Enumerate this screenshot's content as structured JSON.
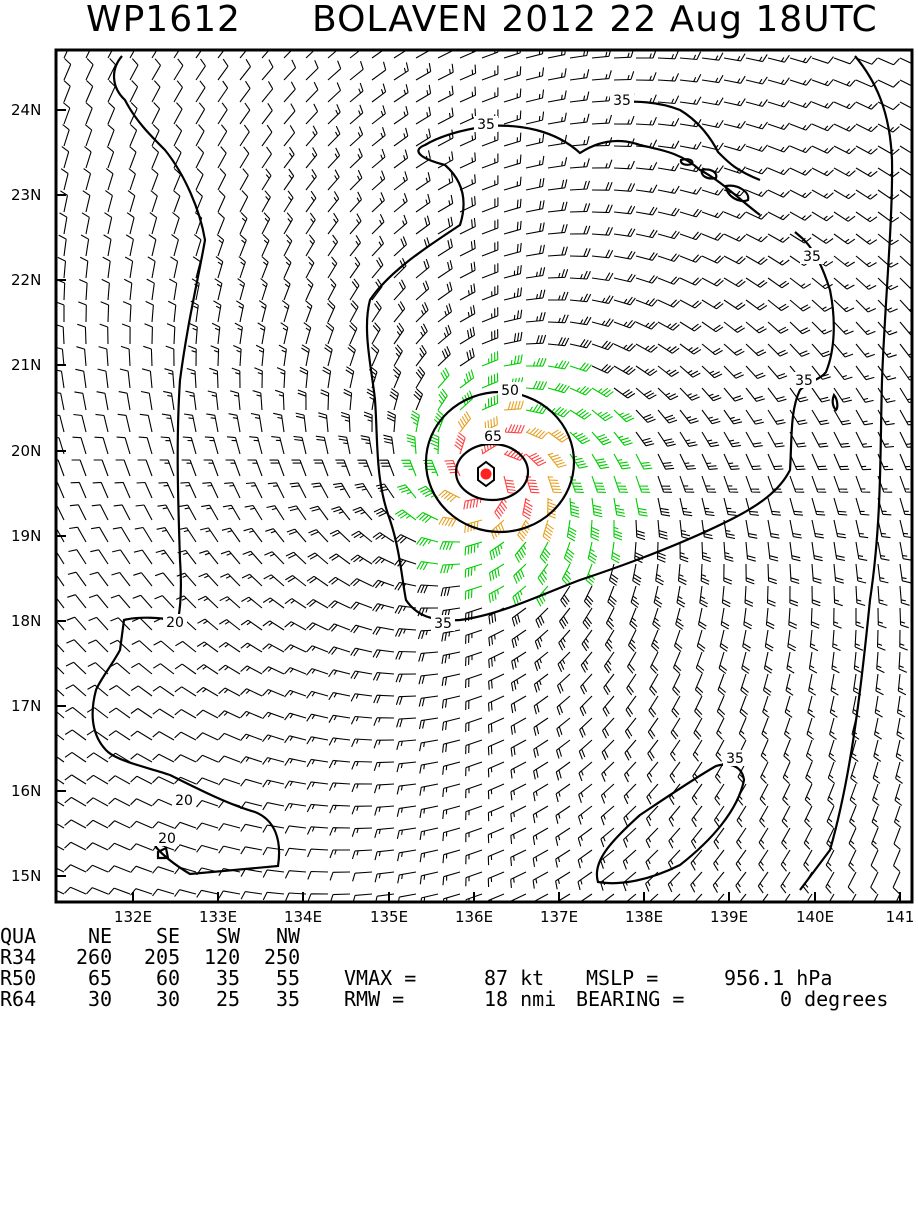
{
  "header": {
    "storm_id": "WP1612",
    "description": "BOLAVEN 2012 22 Aug 18UTC"
  },
  "map": {
    "lat_labels": [
      "24N",
      "23N",
      "22N",
      "21N",
      "20N",
      "19N",
      "18N",
      "17N",
      "16N",
      "15N"
    ],
    "lon_labels": [
      "132E",
      "133E",
      "134E",
      "135E",
      "136E",
      "137E",
      "138E",
      "139E",
      "140E",
      "141"
    ],
    "contour_labels": [
      "35",
      "35",
      "35",
      "35",
      "50",
      "65",
      "20",
      "35",
      "20",
      "20",
      "35"
    ],
    "colors": {
      "below_34kt": "#000000",
      "gale_34_49kt": "#00cc00",
      "storm_50_63kt": "#e6a020",
      "hurricane_64kt_plus": "#ff4040",
      "center": "#ff2020"
    },
    "center": {
      "lat": 19.7,
      "lon": 136.1
    }
  },
  "table": {
    "header": [
      "QUA",
      "NE",
      "SE",
      "SW",
      "NW"
    ],
    "rows": [
      [
        "R34",
        "260",
        "205",
        "120",
        "250"
      ],
      [
        "R50",
        "65",
        "60",
        "35",
        "55"
      ],
      [
        "R64",
        "30",
        "30",
        "25",
        "35"
      ]
    ]
  },
  "summary": {
    "vmax_label": "VMAX =",
    "vmax_value": "87 kt",
    "mslp_label": "MSLP =",
    "mslp_value": "956.1 hPa",
    "rmw_label": "RMW =",
    "rmw_value": "18 nmi",
    "bearing_label": "BEARING =",
    "bearing_value": "0 degrees"
  }
}
